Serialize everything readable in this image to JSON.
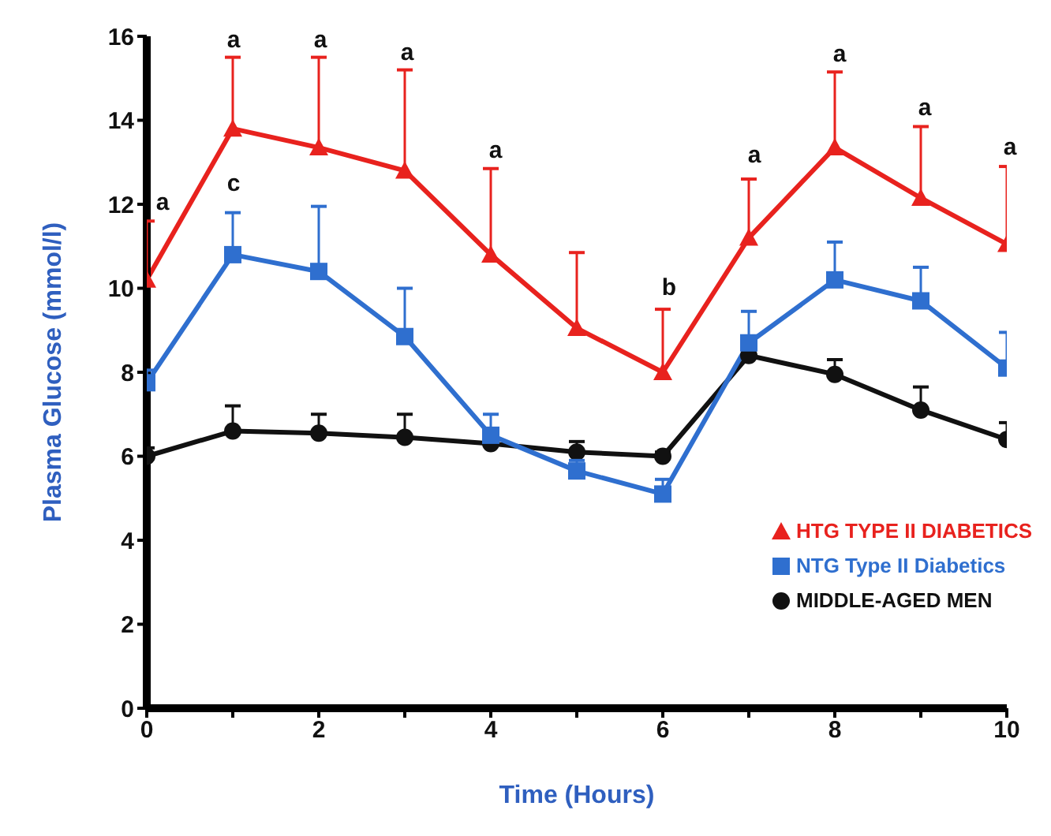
{
  "chart_data": {
    "type": "line",
    "xlabel": "Time (Hours)",
    "ylabel": "Plasma Glucose (mmol/l)",
    "x": [
      0,
      1,
      2,
      3,
      4,
      5,
      6,
      7,
      8,
      9,
      10
    ],
    "series": [
      {
        "name": "HTG TYPE II DIABETICS",
        "color": "#e8221e",
        "marker": "triangle",
        "values": [
          10.2,
          13.8,
          13.35,
          12.8,
          10.8,
          9.05,
          8.0,
          11.2,
          13.35,
          12.15,
          11.05
        ],
        "errors": [
          [
            10.2,
            11.6
          ],
          [
            13.8,
            15.5
          ],
          [
            13.35,
            15.5
          ],
          [
            12.8,
            15.2
          ],
          [
            10.8,
            12.85
          ],
          [
            9.05,
            10.85
          ],
          [
            8.0,
            9.5
          ],
          [
            11.2,
            12.6
          ],
          [
            13.35,
            15.15
          ],
          [
            12.15,
            13.85
          ],
          [
            11.05,
            12.9
          ]
        ]
      },
      {
        "name": "NTG Type II Diabetics",
        "color": "#2f6fcf",
        "marker": "square",
        "values": [
          7.75,
          10.8,
          10.4,
          8.85,
          6.5,
          5.65,
          5.1,
          8.7,
          10.2,
          9.7,
          8.1
        ],
        "errors": [
          [
            7.75,
            8.05
          ],
          [
            10.8,
            11.8
          ],
          [
            10.4,
            11.95
          ],
          [
            8.85,
            10.0
          ],
          [
            6.5,
            7.0
          ],
          [
            5.65,
            5.9
          ],
          [
            5.1,
            5.45
          ],
          [
            8.7,
            9.45
          ],
          [
            10.2,
            11.1
          ],
          [
            9.7,
            10.5
          ],
          [
            8.1,
            8.95
          ]
        ]
      },
      {
        "name": "MIDDLE-AGED MEN",
        "color": "#111111",
        "marker": "circle",
        "values": [
          6.0,
          6.6,
          6.55,
          6.45,
          6.3,
          6.1,
          6.0,
          8.4,
          7.95,
          7.1,
          6.4
        ],
        "errors": [
          [
            6.0,
            6.2
          ],
          [
            6.6,
            7.2
          ],
          [
            6.55,
            7.0
          ],
          [
            6.45,
            7.0
          ],
          null,
          [
            6.1,
            6.35
          ],
          [
            6.0,
            6.1
          ],
          [
            8.4,
            8.55
          ],
          [
            7.95,
            8.3
          ],
          [
            7.1,
            7.65
          ],
          [
            6.4,
            6.8
          ]
        ]
      }
    ],
    "xlim": [
      0,
      10
    ],
    "xticks": [
      0,
      {
        "value": 1,
        "label": null
      },
      2,
      {
        "value": 3,
        "label": null
      },
      4,
      {
        "value": 5,
        "label": null
      },
      6,
      {
        "value": 7,
        "label": null
      },
      8,
      {
        "value": 9,
        "label": null
      },
      10
    ],
    "ylim": [
      0,
      16
    ],
    "yticks": [
      0,
      2,
      4,
      6,
      8,
      10,
      12,
      14,
      16
    ],
    "grid": false,
    "legend": "bottom right",
    "line_style": "solid",
    "annotations": [
      "a",
      "a",
      "c",
      "a",
      "a",
      "a",
      "b",
      "a",
      "a",
      "a",
      "a"
    ]
  }
}
